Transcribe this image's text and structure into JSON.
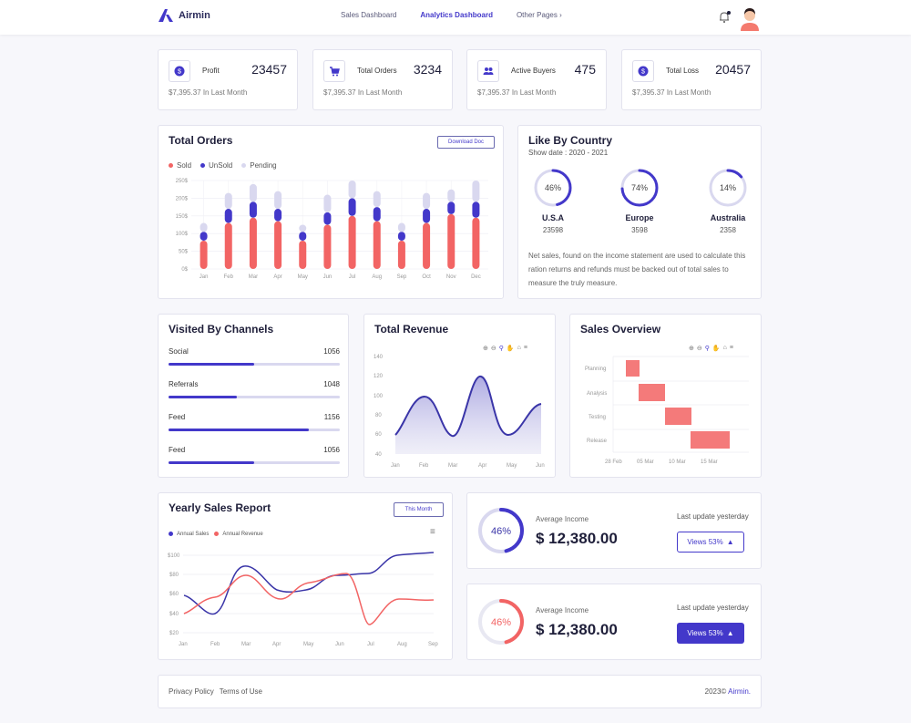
{
  "brand": {
    "name": "Airmin"
  },
  "nav": {
    "items": [
      {
        "label": "Sales Dashboard"
      },
      {
        "label": "Analytics Dashboard"
      },
      {
        "label": "Other Pages"
      }
    ]
  },
  "colors": {
    "accent": "#4338ca",
    "red": "#f26464",
    "lavender": "#d9d8ef"
  },
  "stats": [
    {
      "label": "Profit",
      "value": "23457",
      "sub": "$7,395.37 In Last Month",
      "icon": "dollar-icon"
    },
    {
      "label": "Total Orders",
      "value": "3234",
      "sub": "$7,395.37 In Last Month",
      "icon": "cart-icon"
    },
    {
      "label": "Active Buyers",
      "value": "475",
      "sub": "$7,395.37 In Last Month",
      "icon": "users-icon"
    },
    {
      "label": "Total Loss",
      "value": "20457",
      "sub": "$7,395.37 In Last Month",
      "icon": "dollar-icon"
    }
  ],
  "total_orders": {
    "title": "Total Orders",
    "button": "Download Doc",
    "legend": [
      "Sold",
      "UnSold",
      "Pending"
    ],
    "chart_data": {
      "type": "bar",
      "categories": [
        "Jan",
        "Feb",
        "Mar",
        "Apr",
        "May",
        "Jun",
        "Jul",
        "Aug",
        "Sep",
        "Oct",
        "Nov",
        "Dec"
      ],
      "yticks": [
        "250$",
        "200$",
        "150$",
        "100$",
        "50$",
        "0$"
      ],
      "ylim": [
        0,
        250
      ],
      "series": [
        {
          "name": "Sold",
          "values": [
            80,
            130,
            145,
            135,
            80,
            125,
            150,
            135,
            80,
            130,
            155,
            145
          ]
        },
        {
          "name": "UnSold",
          "values": [
            25,
            40,
            45,
            35,
            25,
            35,
            50,
            40,
            25,
            40,
            35,
            45
          ]
        },
        {
          "name": "Pending",
          "values": [
            25,
            45,
            50,
            50,
            20,
            50,
            50,
            45,
            25,
            45,
            35,
            60
          ]
        }
      ]
    }
  },
  "country": {
    "title": "Like By Country",
    "subtitle": "Show date : 2020 - 2021",
    "items": [
      {
        "name": "U.S.A",
        "value": "23598",
        "percent": "46%",
        "pct": 46
      },
      {
        "name": "Europe",
        "value": "3598",
        "percent": "74%",
        "pct": 74
      },
      {
        "name": "Australia",
        "value": "2358",
        "percent": "14%",
        "pct": 14
      }
    ],
    "note": "Net sales, found on the income statement are used to calculate this ration returns and refunds must be backed out of total sales to measure the truly measure."
  },
  "channels": {
    "title": "Visited By Channels",
    "items": [
      {
        "label": "Social",
        "value": "1056",
        "fill": 0.5
      },
      {
        "label": "Referrals",
        "value": "1048",
        "fill": 0.4
      },
      {
        "label": "Feed",
        "value": "1156",
        "fill": 0.82
      },
      {
        "label": "Feed",
        "value": "1056",
        "fill": 0.5
      }
    ]
  },
  "revenue": {
    "title": "Total Revenue",
    "chart_data": {
      "type": "area",
      "x": [
        "Jan",
        "Feb",
        "Mar",
        "Apr",
        "May",
        "Jun"
      ],
      "yticks": [
        "140",
        "120",
        "100",
        "80",
        "60",
        "40"
      ],
      "ylim": [
        40,
        140
      ]
    }
  },
  "sales_overview": {
    "title": "Sales Overview",
    "chart_data": {
      "type": "bar",
      "categories": [
        "Planning",
        "Analysis",
        "Testing",
        "Release"
      ],
      "xticks": [
        "28 Feb",
        "05 Mar",
        "10 Mar",
        "15 Mar"
      ]
    }
  },
  "yearly": {
    "title": "Yearly Sales Report",
    "button": "This Month",
    "legend": [
      "Annual Sales",
      "Annual Revenue"
    ],
    "chart_data": {
      "type": "line",
      "x": [
        "Jan",
        "Feb",
        "Mar",
        "Apr",
        "May",
        "Jun",
        "Jul",
        "Aug",
        "Sep"
      ],
      "yticks": [
        "$100",
        "$80",
        "$60",
        "$40",
        "$20"
      ],
      "ylim": [
        20,
        100
      ]
    }
  },
  "income": [
    {
      "percent": "46%",
      "pct": 46,
      "label": "Average Income",
      "value": "$ 12,380.00",
      "update": "Last update yesterday",
      "views": "Views 53%"
    },
    {
      "percent": "46%",
      "pct": 46,
      "label": "Average Income",
      "value": "$ 12,380.00",
      "update": "Last update yesterday",
      "views": "Views 53%"
    }
  ],
  "footer": {
    "privacy": "Privacy Policy",
    "terms": "Terms of Use",
    "copy": "2023©",
    "brand": "Airmin."
  }
}
